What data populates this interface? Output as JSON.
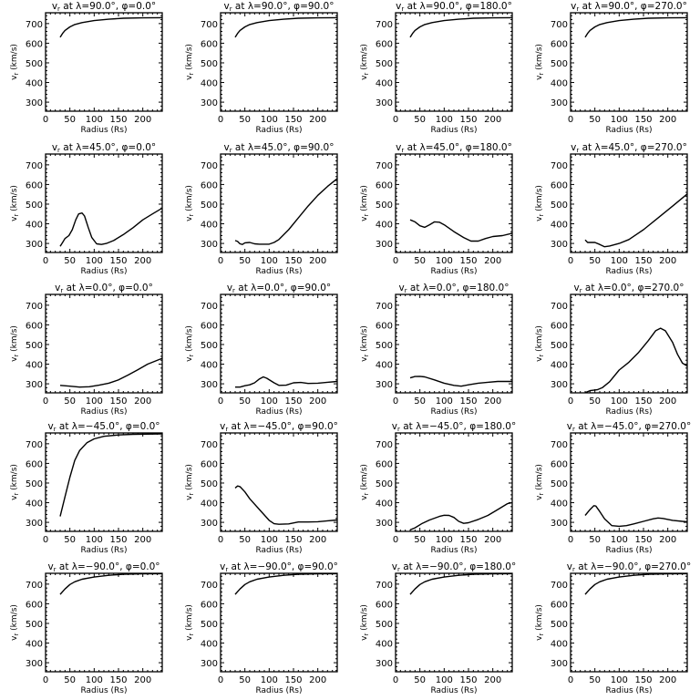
{
  "chart_data": [
    {
      "type": "line",
      "title_prefix": "v",
      "title_sub": "r",
      "title_rest": " at λ=90.0°, φ=0.0°",
      "x": [
        30,
        35,
        40,
        50,
        60,
        75,
        100,
        130,
        160,
        200,
        240
      ],
      "y": [
        630,
        650,
        665,
        683,
        695,
        705,
        715,
        722,
        727,
        729,
        730
      ]
    },
    {
      "type": "line",
      "title_prefix": "v",
      "title_sub": "r",
      "title_rest": " at λ=90.0°, φ=90.0°",
      "x": [
        30,
        35,
        40,
        50,
        60,
        75,
        100,
        130,
        160,
        200,
        240
      ],
      "y": [
        630,
        650,
        665,
        683,
        695,
        705,
        715,
        722,
        727,
        729,
        730
      ]
    },
    {
      "type": "line",
      "title_prefix": "v",
      "title_sub": "r",
      "title_rest": " at λ=90.0°, φ=180.0°",
      "x": [
        30,
        35,
        40,
        50,
        60,
        75,
        100,
        130,
        160,
        200,
        240
      ],
      "y": [
        630,
        650,
        665,
        683,
        695,
        705,
        715,
        722,
        727,
        729,
        730
      ]
    },
    {
      "type": "line",
      "title_prefix": "v",
      "title_sub": "r",
      "title_rest": " at λ=90.0°, φ=270.0°",
      "x": [
        30,
        35,
        40,
        50,
        60,
        75,
        100,
        130,
        160,
        200,
        240
      ],
      "y": [
        630,
        650,
        665,
        683,
        695,
        705,
        715,
        722,
        727,
        729,
        730
      ]
    },
    {
      "type": "line",
      "title_prefix": "v",
      "title_sub": "r",
      "title_rest": " at λ=45.0°, φ=0.0°",
      "x": [
        30,
        35,
        40,
        48,
        55,
        62,
        68,
        75,
        80,
        88,
        95,
        105,
        115,
        125,
        140,
        160,
        180,
        200,
        220,
        240
      ],
      "y": [
        285,
        305,
        325,
        340,
        370,
        420,
        450,
        455,
        440,
        380,
        330,
        298,
        295,
        300,
        315,
        345,
        380,
        420,
        450,
        480
      ]
    },
    {
      "type": "line",
      "title_prefix": "v",
      "title_sub": "r",
      "title_rest": " at λ=45.0°, φ=90.0°",
      "x": [
        30,
        35,
        40,
        45,
        50,
        60,
        70,
        80,
        100,
        110,
        120,
        140,
        160,
        180,
        200,
        220,
        240
      ],
      "y": [
        315,
        310,
        298,
        295,
        303,
        305,
        298,
        296,
        296,
        305,
        320,
        370,
        430,
        490,
        545,
        590,
        630
      ]
    },
    {
      "type": "line",
      "title_prefix": "v",
      "title_sub": "r",
      "title_rest": " at λ=45.0°, φ=180.0°",
      "x": [
        30,
        40,
        50,
        60,
        70,
        80,
        90,
        100,
        120,
        140,
        155,
        170,
        185,
        200,
        220,
        240
      ],
      "y": [
        420,
        410,
        390,
        382,
        395,
        410,
        408,
        395,
        360,
        330,
        312,
        312,
        325,
        335,
        340,
        352
      ]
    },
    {
      "type": "line",
      "title_prefix": "v",
      "title_sub": "r",
      "title_rest": " at λ=45.0°, φ=270.0°",
      "x": [
        30,
        35,
        50,
        60,
        70,
        80,
        100,
        120,
        150,
        180,
        210,
        240
      ],
      "y": [
        318,
        305,
        305,
        295,
        283,
        287,
        300,
        320,
        370,
        430,
        490,
        552
      ]
    },
    {
      "type": "line",
      "title_prefix": "v",
      "title_sub": "r",
      "title_rest": " at λ=0.0°, φ=0.0°",
      "x": [
        30,
        50,
        70,
        90,
        110,
        130,
        150,
        170,
        190,
        210,
        240
      ],
      "y": [
        292,
        288,
        283,
        285,
        293,
        303,
        320,
        345,
        372,
        400,
        430
      ]
    },
    {
      "type": "line",
      "title_prefix": "v",
      "title_sub": "r",
      "title_rest": " at λ=0.0°, φ=90.0°",
      "x": [
        30,
        40,
        50,
        60,
        70,
        80,
        88,
        95,
        110,
        120,
        135,
        150,
        165,
        180,
        200,
        220,
        240
      ],
      "y": [
        283,
        283,
        290,
        295,
        305,
        325,
        335,
        328,
        305,
        292,
        293,
        305,
        307,
        302,
        303,
        308,
        312
      ]
    },
    {
      "type": "line",
      "title_prefix": "v",
      "title_sub": "r",
      "title_rest": " at λ=0.0°, φ=180.0°",
      "x": [
        30,
        40,
        50,
        60,
        80,
        100,
        120,
        135,
        150,
        170,
        190,
        210,
        240
      ],
      "y": [
        330,
        337,
        338,
        335,
        320,
        303,
        292,
        288,
        295,
        303,
        308,
        312,
        312
      ]
    },
    {
      "type": "line",
      "title_prefix": "v",
      "title_sub": "r",
      "title_rest": " at λ=0.0°, φ=270.0°",
      "x": [
        30,
        40,
        55,
        65,
        80,
        100,
        120,
        140,
        160,
        175,
        185,
        195,
        210,
        220,
        230,
        240
      ],
      "y": [
        255,
        265,
        270,
        280,
        310,
        370,
        410,
        460,
        520,
        570,
        583,
        570,
        510,
        450,
        405,
        390
      ]
    },
    {
      "type": "line",
      "title_prefix": "v",
      "title_sub": "r",
      "title_rest": " at λ=−45.0°, φ=0.0°",
      "x": [
        30,
        40,
        50,
        60,
        70,
        85,
        100,
        120,
        150,
        180,
        240
      ],
      "y": [
        330,
        430,
        530,
        615,
        665,
        705,
        725,
        738,
        745,
        748,
        750
      ]
    },
    {
      "type": "line",
      "title_prefix": "v",
      "title_sub": "r",
      "title_rest": " at λ=−45.0°, φ=90.0°",
      "x": [
        30,
        35,
        40,
        50,
        60,
        80,
        100,
        110,
        120,
        140,
        160,
        180,
        200,
        220,
        240
      ],
      "y": [
        475,
        485,
        482,
        455,
        420,
        365,
        310,
        293,
        290,
        292,
        302,
        302,
        303,
        308,
        312
      ]
    },
    {
      "type": "line",
      "title_prefix": "v",
      "title_sub": "r",
      "title_rest": " at λ=−45.0°, φ=180.0°",
      "x": [
        30,
        40,
        55,
        70,
        90,
        100,
        110,
        120,
        130,
        140,
        150,
        170,
        190,
        210,
        230,
        240
      ],
      "y": [
        262,
        272,
        295,
        312,
        330,
        336,
        335,
        325,
        305,
        295,
        298,
        315,
        335,
        365,
        395,
        400
      ]
    },
    {
      "type": "line",
      "title_prefix": "v",
      "title_sub": "r",
      "title_rest": " at λ=−45.0°, φ=270.0°",
      "x": [
        30,
        40,
        48,
        52,
        60,
        70,
        85,
        100,
        115,
        130,
        150,
        170,
        180,
        190,
        210,
        230,
        240
      ],
      "y": [
        335,
        365,
        385,
        383,
        355,
        318,
        283,
        280,
        283,
        292,
        305,
        318,
        322,
        320,
        310,
        305,
        303
      ]
    },
    {
      "type": "line",
      "title_prefix": "v",
      "title_sub": "r",
      "title_rest": " at λ=−90.0°, φ=0.0°",
      "x": [
        30,
        40,
        50,
        60,
        75,
        100,
        130,
        160,
        200,
        240
      ],
      "y": [
        648,
        675,
        698,
        712,
        725,
        736,
        745,
        750,
        752,
        753
      ]
    },
    {
      "type": "line",
      "title_prefix": "v",
      "title_sub": "r",
      "title_rest": " at λ=−90.0°, φ=90.0°",
      "x": [
        30,
        40,
        50,
        60,
        75,
        100,
        130,
        160,
        200,
        240
      ],
      "y": [
        648,
        675,
        698,
        712,
        725,
        736,
        745,
        750,
        752,
        753
      ]
    },
    {
      "type": "line",
      "title_prefix": "v",
      "title_sub": "r",
      "title_rest": " at λ=−90.0°, φ=180.0°",
      "x": [
        30,
        40,
        50,
        60,
        75,
        100,
        130,
        160,
        200,
        240
      ],
      "y": [
        648,
        675,
        698,
        712,
        725,
        736,
        745,
        750,
        752,
        753
      ]
    },
    {
      "type": "line",
      "title_prefix": "v",
      "title_sub": "r",
      "title_rest": " at λ=−90.0°, φ=270.0°",
      "x": [
        30,
        40,
        50,
        60,
        75,
        100,
        130,
        160,
        200,
        240
      ],
      "y": [
        648,
        675,
        698,
        712,
        725,
        736,
        745,
        750,
        752,
        753
      ]
    }
  ],
  "axes": {
    "xlabel": "Radius (Rs)",
    "ylabel_prefix": "v",
    "ylabel_sub": "r",
    "ylabel_rest": " (km/s)",
    "xlim": [
      0,
      240
    ],
    "ylim": [
      254,
      755
    ],
    "x_ticks": [
      "0",
      "50",
      "100",
      "150",
      "200"
    ],
    "y_ticks": [
      "300",
      "400",
      "500",
      "600",
      "700"
    ],
    "grid": false,
    "line_color": "#000000",
    "background": "#ffffff"
  }
}
